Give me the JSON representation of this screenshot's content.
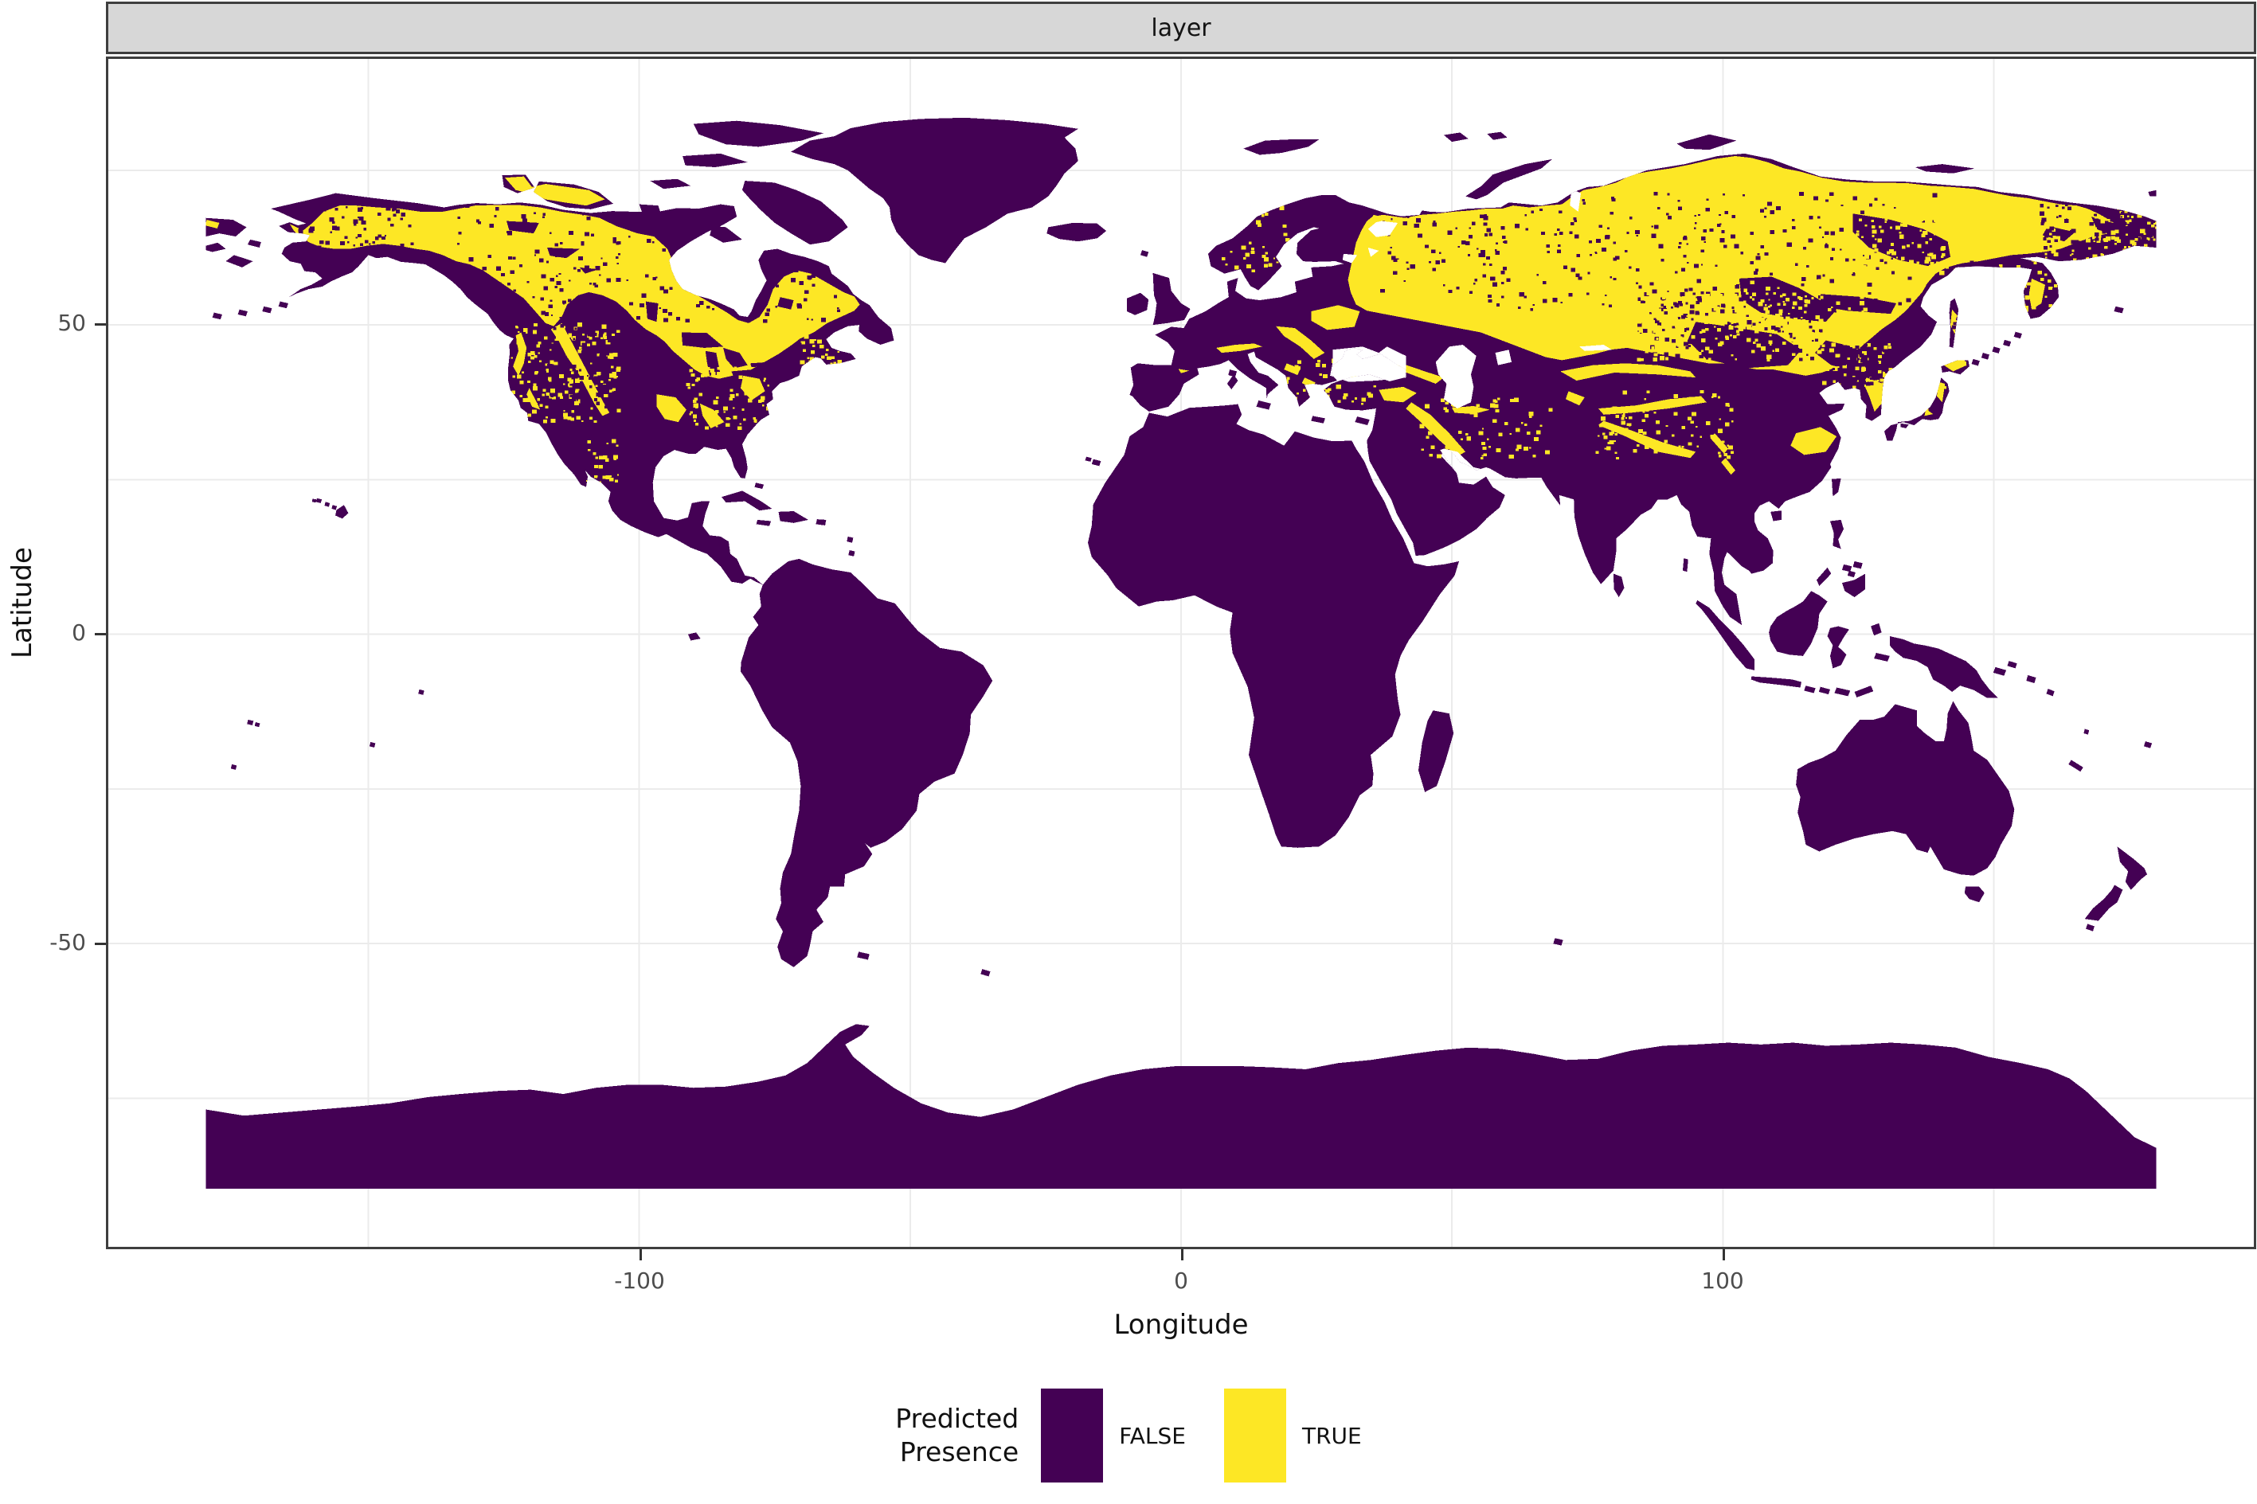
{
  "figure": {
    "strip_title": "layer"
  },
  "axes": {
    "x": {
      "title": "Longitude",
      "tick_labels": [
        "-100",
        "0",
        "100"
      ],
      "tick_values": [
        -100,
        0,
        100
      ],
      "gridline_values": [
        -150,
        -100,
        -50,
        0,
        50,
        100,
        150
      ],
      "range_shown": [
        -198,
        198
      ]
    },
    "y": {
      "title": "Latitude",
      "tick_labels": [
        "50",
        "0",
        "-50"
      ],
      "tick_values": [
        50,
        0,
        -50
      ],
      "gridline_values": [
        75,
        50,
        25,
        0,
        -25,
        -50,
        -75
      ],
      "range_shown": [
        -99,
        93
      ]
    }
  },
  "legend": {
    "title_lines": [
      "Predicted",
      "Presence"
    ],
    "items": [
      {
        "label": "FALSE",
        "color": "#440154"
      },
      {
        "label": "TRUE",
        "color": "#FDE725"
      }
    ]
  },
  "map": {
    "type": "binary raster world map",
    "false_color": "#440154",
    "true_color": "#FDE725",
    "ocean_color": "#ffffff",
    "true_regions": [
      "Interior Alaska",
      "Canadian boreal belt (Yukon to Labrador)",
      "Banks and western Victoria Island",
      "Rocky Mountains and Cascades (patches)",
      "Ozarks and Appalachians (patches)",
      "Karelia and northern European Russia",
      "Carpathians and Polesia (patches)",
      "Caucasus, eastern Anatolia and Zagros (strips)",
      "Siberia from the Urals to Chukotka",
      "Tian Shan, Altai and Khingan ranges (mixed)",
      "Northeast China and Korean highlands (patches)",
      "Kamchatka interior and Hokkaido (patches)"
    ],
    "false_regions": [
      "Contiguous USA, Mexico and Central America",
      "Greenland, Iceland and Arctic islands",
      "South America",
      "Europe west of ~30E and Mediterranean",
      "Africa and Madagascar",
      "Arabia, India and Southeast Asia",
      "Indonesia, Philippines and New Guinea",
      "Australia, Tasmania and New Zealand",
      "Antarctica",
      "Verkhoyansk highlands, Mongolia and Manchurian plain (pockets)"
    ]
  },
  "theme": {
    "strip_bg": "#d7d7d7",
    "panel_border": "#3e3e3e",
    "grid_color": "#ebebeb",
    "tick_label_color": "#4d4d4d",
    "axis_title_color": "#111111"
  }
}
